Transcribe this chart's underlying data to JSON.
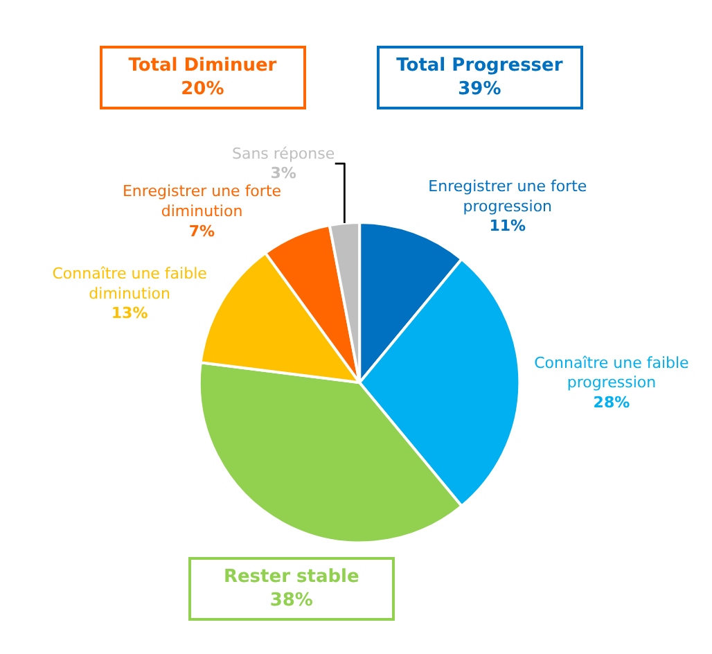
{
  "chart_data": {
    "type": "pie",
    "categories": [
      "Enregistrer une forte progression",
      "Connaître une faible progression",
      null,
      "Connaître une faible diminution",
      "Enregistrer une forte diminution",
      "Sans réponse"
    ],
    "values": [
      11,
      28,
      38,
      13,
      7,
      3
    ],
    "colors": [
      "#0070c0",
      "#00b0f0",
      "#92d050",
      "#ffc000",
      "#ff6600",
      "#bfbfbf"
    ],
    "value_labels": [
      "11%",
      "28%",
      null,
      "13%",
      "7%",
      "3%"
    ],
    "legend": false,
    "annotations": [
      "Total Diminuer\n20%",
      "Total Progresser\n39%",
      "Rester stable\n38%"
    ]
  }
}
